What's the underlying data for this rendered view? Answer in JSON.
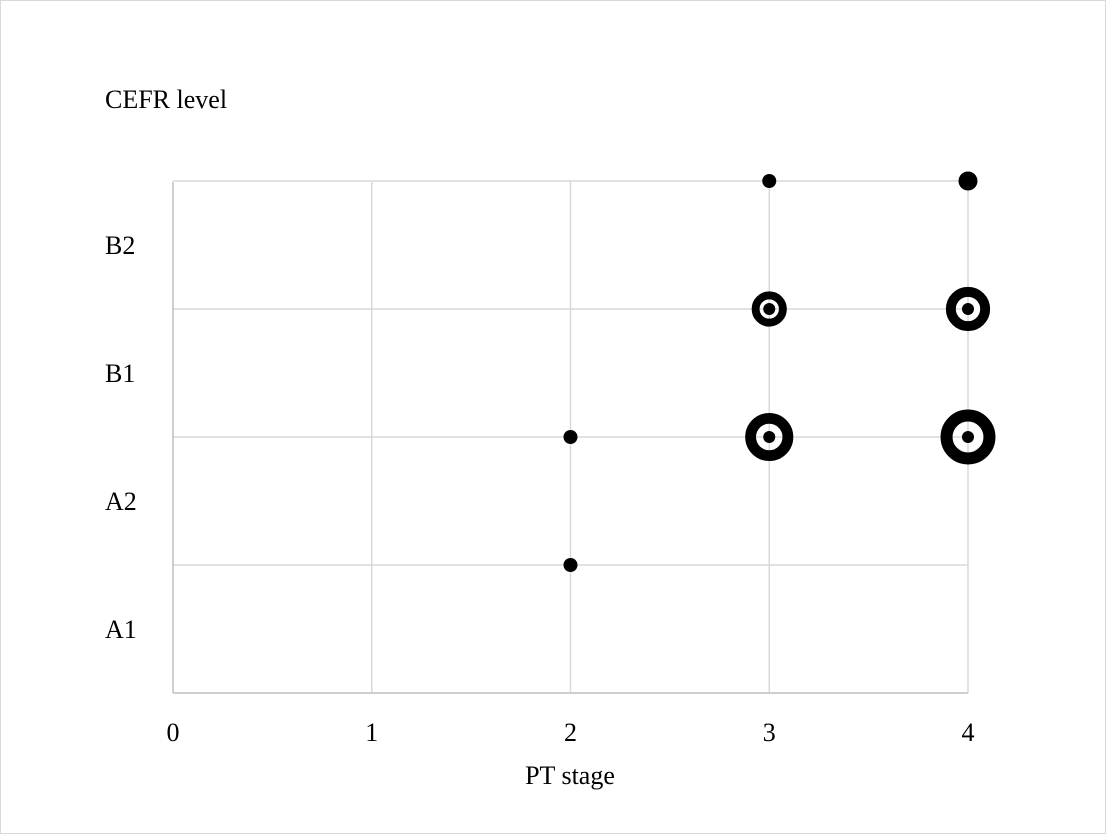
{
  "chart_data": {
    "type": "scatter",
    "title": "",
    "xlabel": "PT stage",
    "ylabel": "CEFR level",
    "xlim": [
      0,
      4
    ],
    "x_ticks": [
      "0",
      "1",
      "2",
      "3",
      "4"
    ],
    "y_categories": [
      "A1",
      "A2",
      "B1",
      "B2"
    ],
    "grid": true,
    "legend": "none",
    "points": [
      {
        "x": 2,
        "y": "A1",
        "count": 1
      },
      {
        "x": 2,
        "y": "A2",
        "count": 1
      },
      {
        "x": 3,
        "y": "A2",
        "count": 6
      },
      {
        "x": 4,
        "y": "A2",
        "count": 8
      },
      {
        "x": 3,
        "y": "B1",
        "count": 3
      },
      {
        "x": 4,
        "y": "B1",
        "count": 5
      },
      {
        "x": 3,
        "y": "B2",
        "count": 1
      },
      {
        "x": 4,
        "y": "B2",
        "count": 1.5
      }
    ],
    "colors": {
      "grid": "#d9d9d9",
      "axis": "#bfbfbf",
      "marker": "#000000"
    }
  }
}
